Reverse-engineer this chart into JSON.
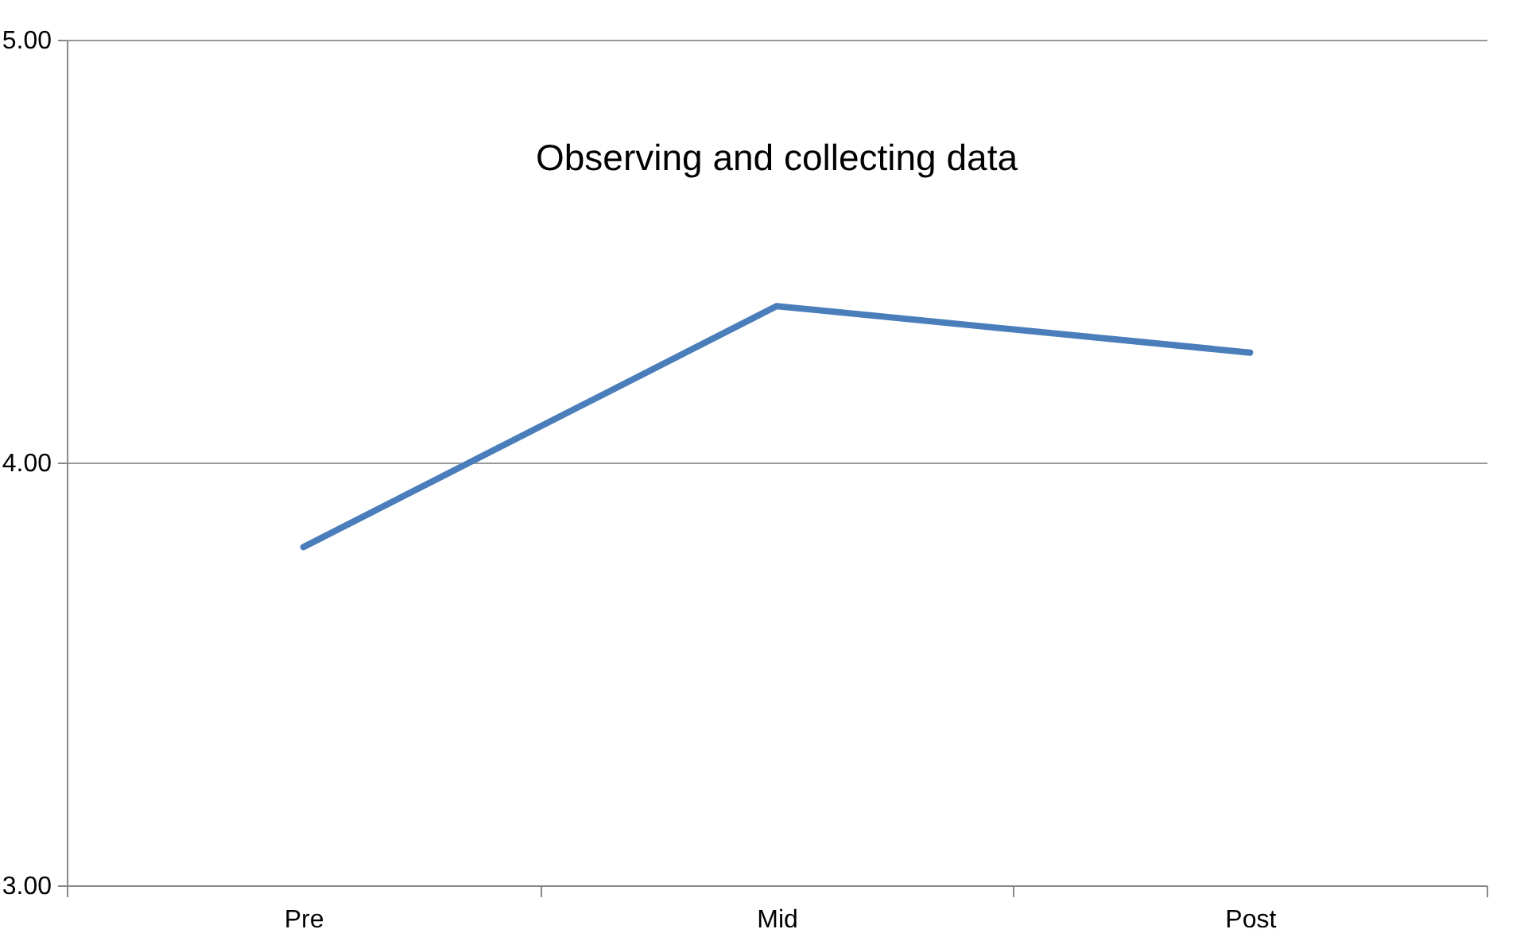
{
  "chart_data": {
    "type": "line",
    "title": "Observing and collecting data",
    "categories": [
      "Pre",
      "Mid",
      "Post"
    ],
    "series": [
      {
        "color": "#4a7ebb",
        "values": [
          3.8,
          4.37,
          4.26
        ]
      }
    ],
    "ylim": [
      3,
      5
    ],
    "yticks": [
      {
        "value": 3,
        "label": "3.00"
      },
      {
        "value": 4,
        "label": "4.00"
      },
      {
        "value": 5,
        "label": "5.00"
      }
    ],
    "grid": "y",
    "legend": false,
    "marker": "none",
    "line_style": "solid"
  }
}
